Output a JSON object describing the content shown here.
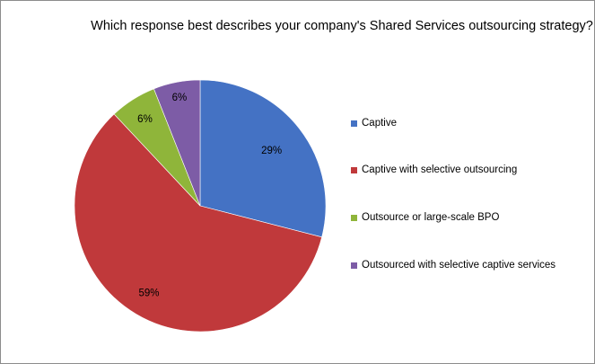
{
  "chart_data": {
    "type": "pie",
    "title": "Which response best describes your company's Shared Services outsourcing strategy?",
    "categories": [
      "Captive",
      "Captive with selective outsourcing",
      "Outsource or large-scale BPO",
      "Outsourced with selective captive services"
    ],
    "values": [
      29,
      59,
      6,
      6
    ],
    "data_labels": [
      "29%",
      "59%",
      "6%",
      "6%"
    ],
    "colors": [
      "#4472c4",
      "#c0393b",
      "#8fb53a",
      "#7d5ca6"
    ],
    "legend_position": "right",
    "start_angle_deg": 0,
    "direction": "clockwise"
  }
}
